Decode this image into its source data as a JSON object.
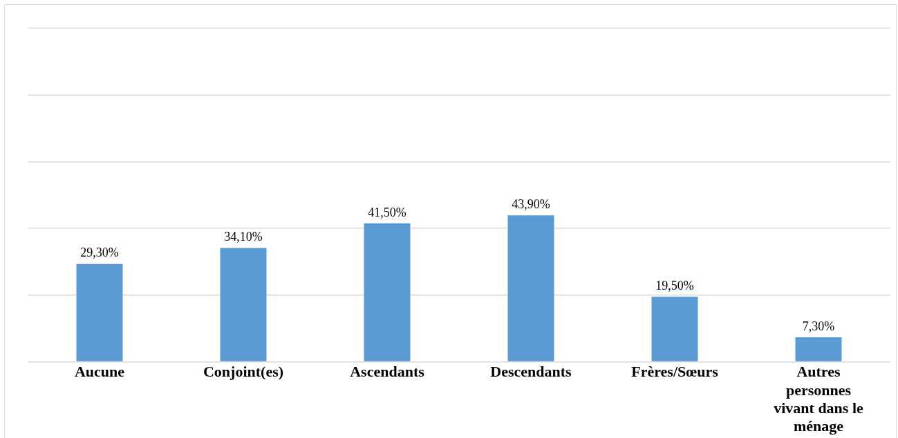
{
  "chart_data": {
    "type": "bar",
    "categories": [
      "Aucune",
      "Conjoint(es)",
      "Ascendants",
      "Descendants",
      "Frères/Sœurs",
      "Autres personnes vivant dans le ménage"
    ],
    "values": [
      29.3,
      34.1,
      41.5,
      43.9,
      19.5,
      7.3
    ],
    "value_labels": [
      "29,30%",
      "34,10%",
      "41,50%",
      "43,90%",
      "19,50%",
      "7,30%"
    ],
    "color": "#5b9bd5",
    "ylim": [
      0,
      100
    ],
    "grid": "y",
    "tick_labels": "x",
    "legend": false
  }
}
